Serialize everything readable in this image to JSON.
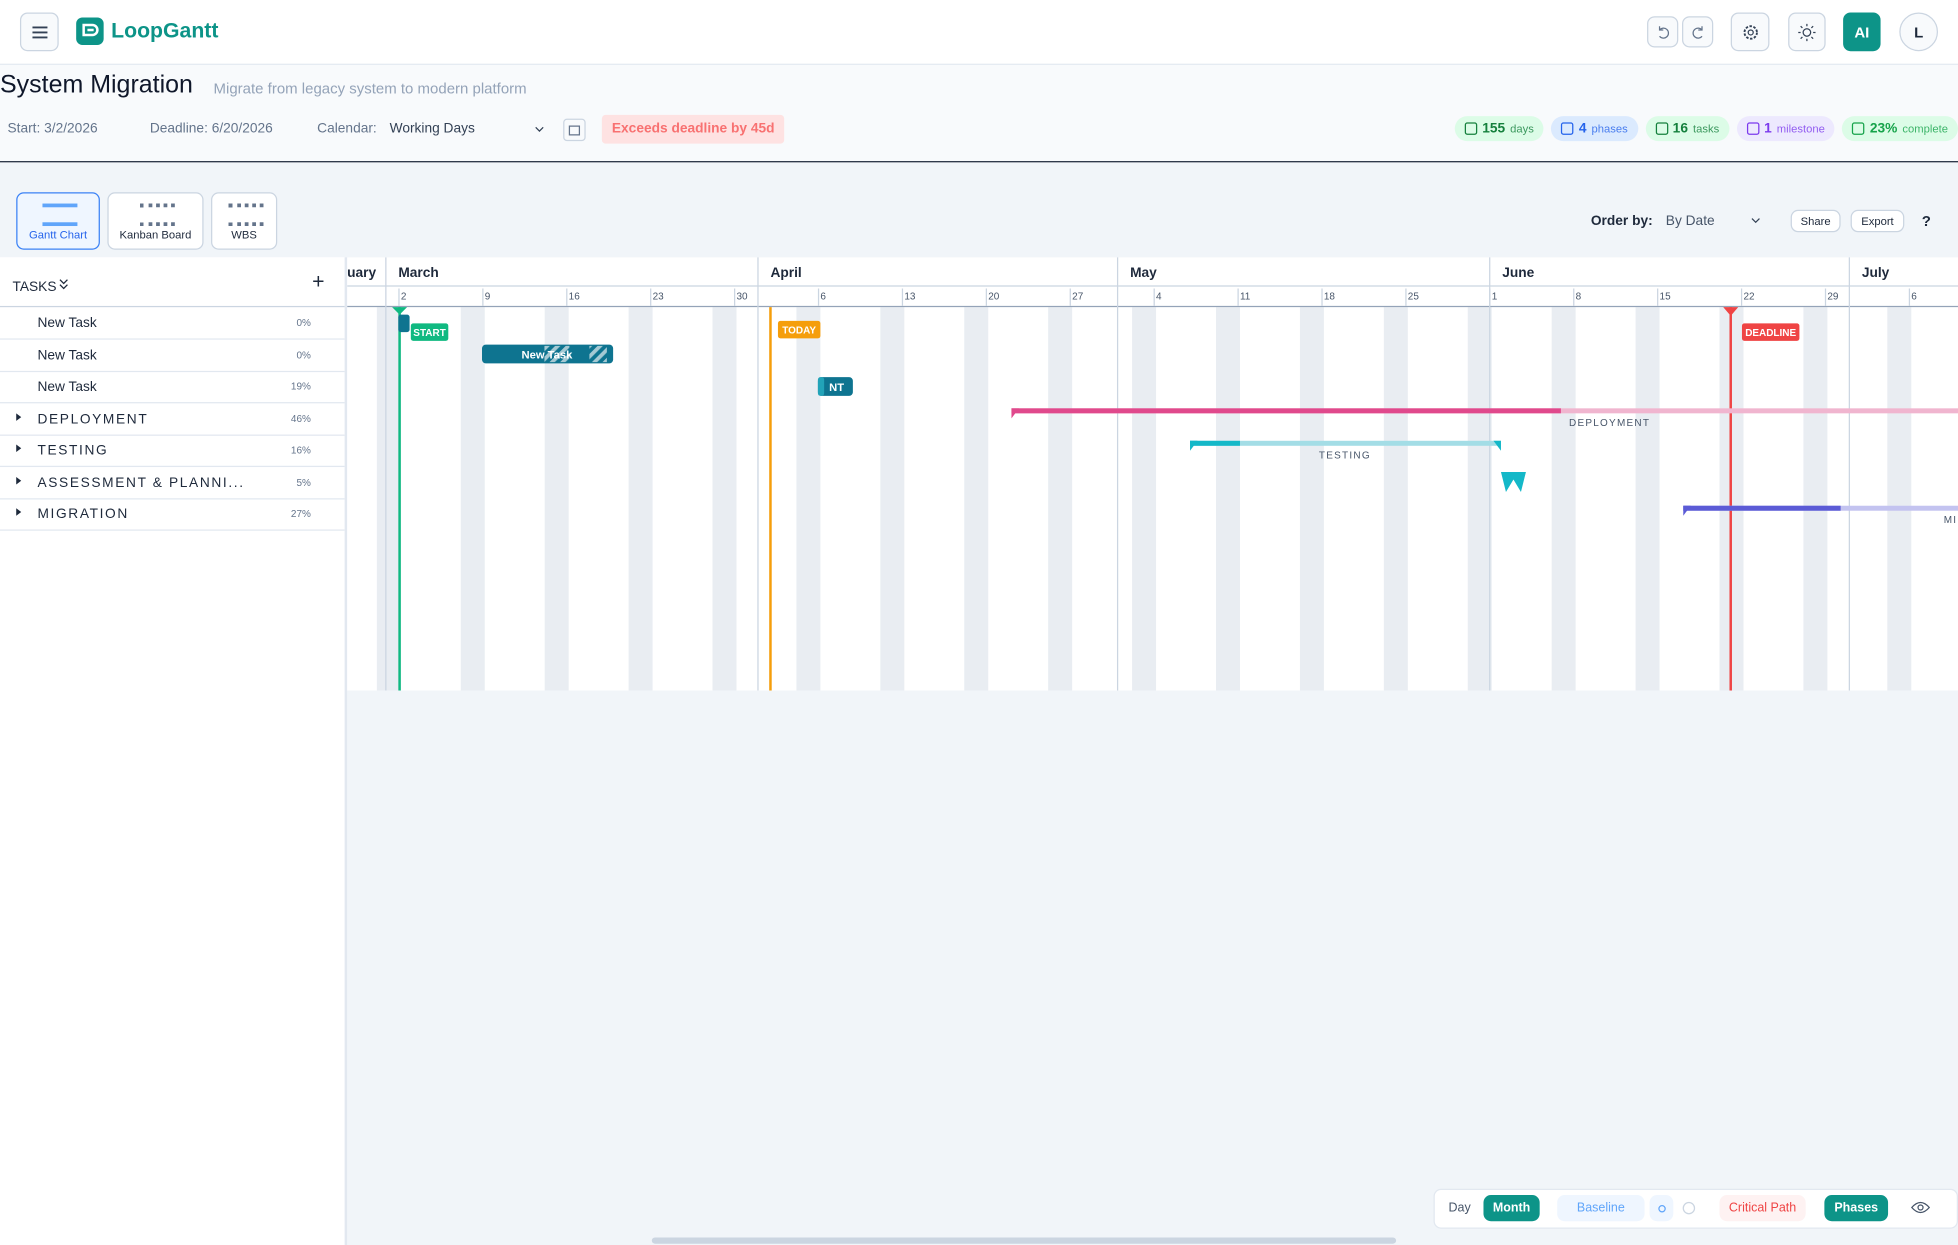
{
  "header": {
    "logo": "LoopGantt",
    "ai": "AI",
    "avatar": "L"
  },
  "project": {
    "title": "System Migration",
    "description": "Migrate from legacy system to modern platform",
    "start": "Start: 3/2/2026",
    "deadline": "Deadline: 6/20/2026",
    "calendar_label": "Calendar:",
    "calendar": "Working Days",
    "warning": "Exceeds deadline by 45d"
  },
  "stats": [
    {
      "value": "155",
      "unit": "days"
    },
    {
      "value": "4",
      "unit": "phases"
    },
    {
      "value": "16",
      "unit": "tasks"
    },
    {
      "value": "1",
      "unit": "milestone"
    },
    {
      "value": "23%",
      "unit": "complete"
    }
  ],
  "views": [
    "Gantt Chart",
    "Kanban Board",
    "WBS"
  ],
  "toolbar": {
    "order_label": "Order by:",
    "order": "By Date",
    "share": "Share",
    "export": "Export",
    "help": "?"
  },
  "tasks_panel": {
    "title": "TASKS",
    "add": "+"
  },
  "tasks": [
    {
      "name": "New Task",
      "progress": "0%"
    },
    {
      "name": "New Task",
      "progress": "0%"
    },
    {
      "name": "New Task",
      "progress": "19%"
    },
    {
      "name": "DEPLOYMENT",
      "progress": "46%"
    },
    {
      "name": "TESTING",
      "progress": "16%"
    },
    {
      "name": "ASSESSMENT & PLANNI...",
      "progress": "5%"
    },
    {
      "name": "MIGRATION",
      "progress": "27%"
    }
  ],
  "timeline": {
    "months": [
      "uary",
      "March",
      "April",
      "May",
      "June",
      "July"
    ],
    "days": [
      "2",
      "9",
      "16",
      "23",
      "30",
      "6",
      "13",
      "20",
      "27",
      "4",
      "11",
      "18",
      "25",
      "1",
      "8",
      "15",
      "22",
      "29",
      "6"
    ]
  },
  "markers": {
    "start": "START",
    "today": "TODAY",
    "deadline": "DEADLINE"
  },
  "bars": {
    "task": "New Task",
    "short": "NT",
    "deployment": "DEPLOYMENT",
    "testing": "TESTING",
    "migration": "MI"
  },
  "bottom": {
    "day": "Day",
    "month": "Month",
    "baseline": "Baseline",
    "critical": "Critical Path",
    "phases": "Phases"
  }
}
